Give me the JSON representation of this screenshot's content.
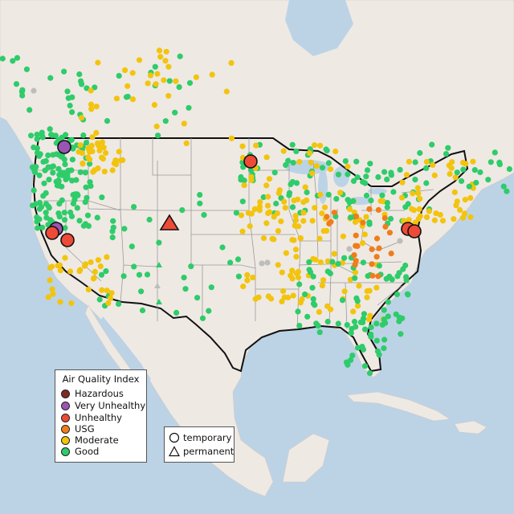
{
  "legend": {
    "title": "Air Quality Index",
    "categories": [
      {
        "key": "hazardous",
        "label": "Hazardous",
        "color": "#7e2b24"
      },
      {
        "key": "very_unhealthy",
        "label": "Very Unhealthy",
        "color": "#9a55b3"
      },
      {
        "key": "unhealthy",
        "label": "Unhealthy",
        "color": "#ee4a36"
      },
      {
        "key": "usg",
        "label": "USG",
        "color": "#f07d1a"
      },
      {
        "key": "moderate",
        "label": "Moderate",
        "color": "#f2c40e"
      },
      {
        "key": "good",
        "label": "Good",
        "color": "#2ecc6a"
      }
    ]
  },
  "monitor_legend": {
    "temporary": "temporary",
    "permanent": "permanent"
  },
  "colors": {
    "water": "#bcd3e6",
    "land": "#efe9e4",
    "no_data": "#bdbdbd"
  }
}
